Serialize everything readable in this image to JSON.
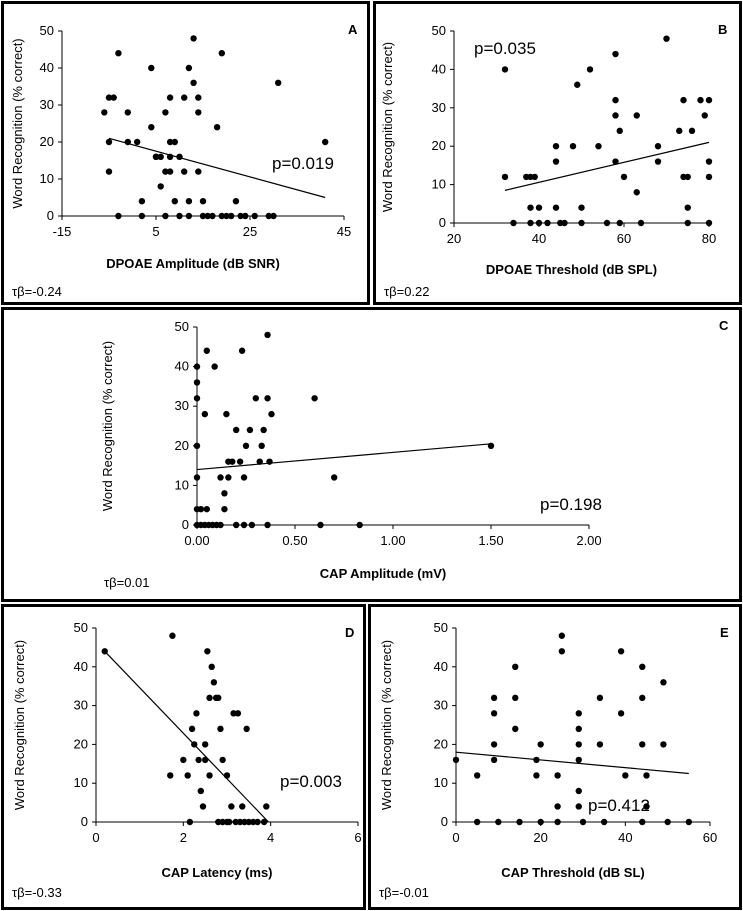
{
  "chart_data": [
    {
      "type": "scatter",
      "panel_label": "A",
      "xlabel": "DPOAE Amplitude (dB SNR)",
      "ylabel": "Word Recognition (% correct)",
      "xlim": [
        -15,
        45
      ],
      "ylim": [
        0,
        50
      ],
      "x_ticks": [
        -15,
        5,
        25,
        45
      ],
      "y_ticks": [
        0,
        10,
        20,
        30,
        40,
        50
      ],
      "pvalue": "p=0.019",
      "tau": "τβ=-0.24",
      "trend": {
        "x": [
          -5,
          41
        ],
        "y": [
          21,
          5
        ]
      },
      "points": [
        [
          -3,
          44
        ],
        [
          -4,
          32
        ],
        [
          -5,
          32
        ],
        [
          -6,
          28
        ],
        [
          -5,
          20
        ],
        [
          -5,
          12
        ],
        [
          -3,
          0
        ],
        [
          -1,
          28
        ],
        [
          -1,
          20
        ],
        [
          1,
          20
        ],
        [
          2,
          4
        ],
        [
          2,
          0
        ],
        [
          4,
          40
        ],
        [
          4,
          24
        ],
        [
          5,
          16
        ],
        [
          5,
          16
        ],
        [
          6,
          8
        ],
        [
          6,
          16
        ],
        [
          7,
          28
        ],
        [
          7,
          12
        ],
        [
          7,
          0
        ],
        [
          8,
          32
        ],
        [
          8,
          20
        ],
        [
          8,
          16
        ],
        [
          8,
          12
        ],
        [
          9,
          20
        ],
        [
          9,
          4
        ],
        [
          10,
          16
        ],
        [
          10,
          0
        ],
        [
          11,
          32
        ],
        [
          11,
          12
        ],
        [
          12,
          40
        ],
        [
          12,
          4
        ],
        [
          12,
          0
        ],
        [
          13,
          48
        ],
        [
          13,
          36
        ],
        [
          14,
          32
        ],
        [
          14,
          28
        ],
        [
          14,
          12
        ],
        [
          15,
          4
        ],
        [
          15,
          0
        ],
        [
          16,
          0
        ],
        [
          17,
          0
        ],
        [
          18,
          24
        ],
        [
          19,
          44
        ],
        [
          19,
          0
        ],
        [
          20,
          0
        ],
        [
          21,
          0
        ],
        [
          22,
          4
        ],
        [
          23,
          0
        ],
        [
          24,
          0
        ],
        [
          26,
          0
        ],
        [
          29,
          0
        ],
        [
          30,
          0
        ],
        [
          31,
          36
        ],
        [
          41,
          20
        ]
      ]
    },
    {
      "type": "scatter",
      "panel_label": "B",
      "xlabel": "DPOAE Threshold (dB SPL)",
      "ylabel": "Word Recognition (% correct)",
      "xlim": [
        20,
        80
      ],
      "ylim": [
        0,
        50
      ],
      "x_ticks": [
        20,
        40,
        60,
        80
      ],
      "y_ticks": [
        0,
        10,
        20,
        30,
        40,
        50
      ],
      "pvalue": "p=0.035",
      "tau": "τβ=0.22",
      "trend": {
        "x": [
          32,
          80
        ],
        "y": [
          8.5,
          21
        ]
      },
      "points": [
        [
          32,
          40
        ],
        [
          32,
          12
        ],
        [
          34,
          0
        ],
        [
          37,
          12
        ],
        [
          38,
          12
        ],
        [
          38,
          4
        ],
        [
          38,
          0
        ],
        [
          39,
          12
        ],
        [
          40,
          4
        ],
        [
          40,
          0
        ],
        [
          42,
          0
        ],
        [
          44,
          20
        ],
        [
          44,
          16
        ],
        [
          44,
          4
        ],
        [
          45,
          0
        ],
        [
          46,
          0
        ],
        [
          48,
          20
        ],
        [
          49,
          36
        ],
        [
          50,
          4
        ],
        [
          50,
          0
        ],
        [
          52,
          40
        ],
        [
          54,
          20
        ],
        [
          56,
          0
        ],
        [
          58,
          44
        ],
        [
          58,
          32
        ],
        [
          58,
          28
        ],
        [
          58,
          16
        ],
        [
          59,
          24
        ],
        [
          59,
          0
        ],
        [
          60,
          12
        ],
        [
          63,
          28
        ],
        [
          63,
          8
        ],
        [
          64,
          0
        ],
        [
          68,
          16
        ],
        [
          68,
          20
        ],
        [
          70,
          48
        ],
        [
          73,
          24
        ],
        [
          74,
          12
        ],
        [
          74,
          32
        ],
        [
          75,
          12
        ],
        [
          75,
          4
        ],
        [
          75,
          0
        ],
        [
          76,
          24
        ],
        [
          78,
          32
        ],
        [
          79,
          28
        ],
        [
          80,
          32
        ],
        [
          80,
          16
        ],
        [
          80,
          12
        ],
        [
          80,
          0
        ]
      ]
    },
    {
      "type": "scatter",
      "panel_label": "C",
      "xlabel": "CAP Amplitude (mV)",
      "ylabel": "Word Recognition (% correct)",
      "xlim": [
        0,
        2
      ],
      "ylim": [
        0,
        50
      ],
      "x_ticks": [
        "0.00",
        "0.50",
        "1.00",
        "1.50",
        "2.00"
      ],
      "y_ticks": [
        0,
        10,
        20,
        30,
        40,
        50
      ],
      "pvalue": "p=0.198",
      "tau": "τβ=0.01",
      "trend": {
        "x": [
          0,
          1.5
        ],
        "y": [
          14,
          20.5
        ]
      },
      "points": [
        [
          0,
          40
        ],
        [
          0,
          36
        ],
        [
          0,
          32
        ],
        [
          0,
          20
        ],
        [
          0,
          12
        ],
        [
          0,
          4
        ],
        [
          0,
          0
        ],
        [
          0.02,
          4
        ],
        [
          0.02,
          0
        ],
        [
          0.04,
          28
        ],
        [
          0.04,
          0
        ],
        [
          0.05,
          4
        ],
        [
          0.05,
          44
        ],
        [
          0.06,
          0
        ],
        [
          0.08,
          0
        ],
        [
          0.09,
          40
        ],
        [
          0.1,
          0
        ],
        [
          0.12,
          12
        ],
        [
          0.12,
          0
        ],
        [
          0.14,
          8
        ],
        [
          0.14,
          4
        ],
        [
          0.15,
          28
        ],
        [
          0.16,
          12
        ],
        [
          0.16,
          16
        ],
        [
          0.18,
          16
        ],
        [
          0.2,
          0
        ],
        [
          0.2,
          24
        ],
        [
          0.22,
          16
        ],
        [
          0.23,
          44
        ],
        [
          0.24,
          12
        ],
        [
          0.24,
          0
        ],
        [
          0.25,
          20
        ],
        [
          0.27,
          24
        ],
        [
          0.28,
          0
        ],
        [
          0.3,
          32
        ],
        [
          0.32,
          16
        ],
        [
          0.33,
          20
        ],
        [
          0.34,
          24
        ],
        [
          0.36,
          48
        ],
        [
          0.36,
          32
        ],
        [
          0.36,
          0
        ],
        [
          0.38,
          28
        ],
        [
          0.37,
          16
        ],
        [
          0.6,
          32
        ],
        [
          0.63,
          0
        ],
        [
          0.7,
          12
        ],
        [
          0.83,
          0
        ],
        [
          1.5,
          20
        ]
      ]
    },
    {
      "type": "scatter",
      "panel_label": "D",
      "xlabel": "CAP Latency (ms)",
      "ylabel": "Word Recognition (% correct)",
      "xlim": [
        0,
        6
      ],
      "ylim": [
        0,
        50
      ],
      "x_ticks": [
        0,
        2,
        4,
        6
      ],
      "y_ticks": [
        0,
        10,
        20,
        30,
        40,
        50
      ],
      "pvalue": "p=0.003",
      "tau": "τβ=-0.33",
      "trend": {
        "x": [
          0.2,
          3.95
        ],
        "y": [
          44,
          0
        ]
      },
      "points": [
        [
          0.2,
          44
        ],
        [
          1.7,
          12
        ],
        [
          1.75,
          48
        ],
        [
          2.0,
          16
        ],
        [
          2.1,
          12
        ],
        [
          2.15,
          0
        ],
        [
          2.2,
          24
        ],
        [
          2.25,
          20
        ],
        [
          2.3,
          28
        ],
        [
          2.35,
          16
        ],
        [
          2.4,
          8
        ],
        [
          2.45,
          4
        ],
        [
          2.5,
          16
        ],
        [
          2.5,
          20
        ],
        [
          2.55,
          44
        ],
        [
          2.6,
          12
        ],
        [
          2.6,
          32
        ],
        [
          2.65,
          40
        ],
        [
          2.7,
          36
        ],
        [
          2.75,
          32
        ],
        [
          2.8,
          32
        ],
        [
          2.8,
          0
        ],
        [
          2.85,
          24
        ],
        [
          2.9,
          0
        ],
        [
          2.9,
          16
        ],
        [
          3.0,
          0
        ],
        [
          3.0,
          12
        ],
        [
          3.05,
          0
        ],
        [
          3.1,
          4
        ],
        [
          3.15,
          28
        ],
        [
          3.2,
          0
        ],
        [
          3.25,
          28
        ],
        [
          3.3,
          0
        ],
        [
          3.35,
          4
        ],
        [
          3.4,
          0
        ],
        [
          3.45,
          24
        ],
        [
          3.5,
          0
        ],
        [
          3.6,
          0
        ],
        [
          3.7,
          0
        ],
        [
          3.85,
          0
        ],
        [
          3.9,
          4
        ]
      ]
    },
    {
      "type": "scatter",
      "panel_label": "E",
      "xlabel": "CAP Threshold (dB SL)",
      "ylabel": "Word Recognition (% correct)",
      "xlim": [
        0,
        60
      ],
      "ylim": [
        0,
        50
      ],
      "x_ticks": [
        0,
        20,
        40,
        60
      ],
      "y_ticks": [
        0,
        10,
        20,
        30,
        40,
        50
      ],
      "pvalue": "p=0.412",
      "tau": "τβ=-0.01",
      "trend": {
        "x": [
          0,
          55
        ],
        "y": [
          18,
          12.5
        ]
      },
      "points": [
        [
          0,
          16
        ],
        [
          5,
          12
        ],
        [
          5,
          0
        ],
        [
          9,
          32
        ],
        [
          9,
          28
        ],
        [
          9,
          20
        ],
        [
          9,
          16
        ],
        [
          10,
          0
        ],
        [
          14,
          32
        ],
        [
          14,
          24
        ],
        [
          14,
          40
        ],
        [
          15,
          0
        ],
        [
          19,
          16
        ],
        [
          19,
          12
        ],
        [
          20,
          20
        ],
        [
          20,
          0
        ],
        [
          24,
          4
        ],
        [
          25,
          48
        ],
        [
          25,
          44
        ],
        [
          24,
          12
        ],
        [
          24,
          0
        ],
        [
          29,
          28
        ],
        [
          29,
          24
        ],
        [
          29,
          20
        ],
        [
          29,
          16
        ],
        [
          29,
          8
        ],
        [
          29,
          4
        ],
        [
          30,
          0
        ],
        [
          34,
          32
        ],
        [
          34,
          20
        ],
        [
          35,
          0
        ],
        [
          39,
          44
        ],
        [
          39,
          28
        ],
        [
          40,
          12
        ],
        [
          44,
          40
        ],
        [
          44,
          32
        ],
        [
          44,
          20
        ],
        [
          45,
          12
        ],
        [
          45,
          4
        ],
        [
          44,
          0
        ],
        [
          49,
          36
        ],
        [
          49,
          20
        ],
        [
          50,
          0
        ],
        [
          55,
          0
        ]
      ]
    }
  ]
}
